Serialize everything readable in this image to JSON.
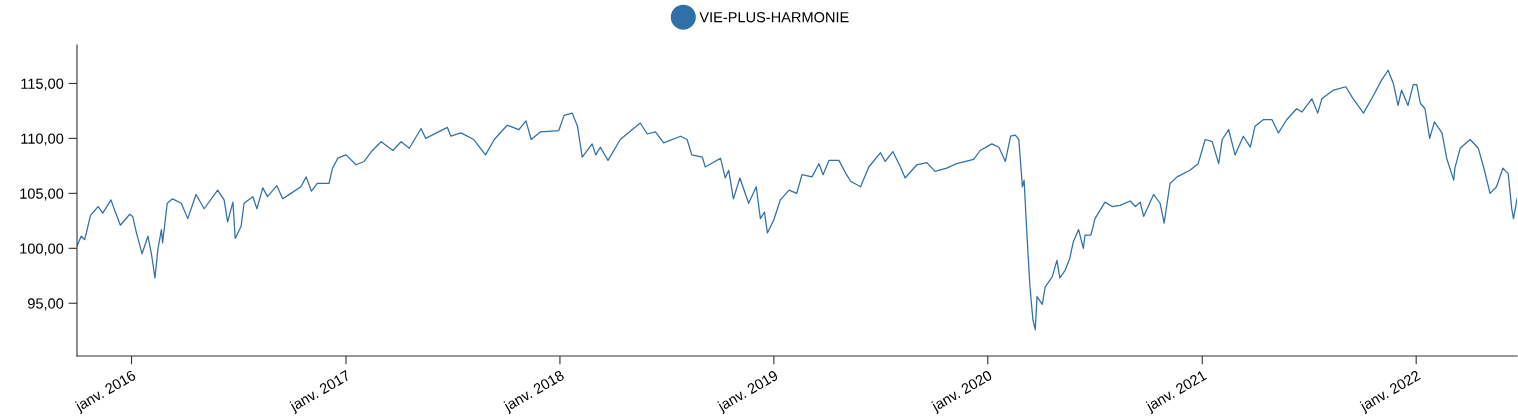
{
  "chart_data": {
    "type": "line",
    "legend": "top",
    "grid": false,
    "marker": "none",
    "line_style": "solid",
    "xlim": [
      "2015-09-30",
      "2022-06-22"
    ],
    "ylim": [
      90.2,
      118.5
    ],
    "xticks": [
      {
        "value": "2016-01-01",
        "label": "janv. 2016"
      },
      {
        "value": "2017-01-01",
        "label": "janv. 2017"
      },
      {
        "value": "2018-01-01",
        "label": "janv. 2018"
      },
      {
        "value": "2019-01-01",
        "label": "janv. 2019"
      },
      {
        "value": "2020-01-01",
        "label": "janv. 2020"
      },
      {
        "value": "2021-01-01",
        "label": "janv. 2021"
      },
      {
        "value": "2022-01-01",
        "label": "janv. 2022"
      }
    ],
    "yticks": [
      {
        "value": 95,
        "label": "95,00"
      },
      {
        "value": 100,
        "label": "100,00"
      },
      {
        "value": 105,
        "label": "105,00"
      },
      {
        "value": 110,
        "label": "110,00"
      },
      {
        "value": 115,
        "label": "115,00"
      }
    ],
    "x": [
      "2015-09-30",
      "2015-10-07",
      "2015-10-13",
      "2015-10-16",
      "2015-10-23",
      "2015-11-05",
      "2015-11-13",
      "2015-11-27",
      "2015-12-03",
      "2015-12-13",
      "2015-12-29",
      "2016-01-03",
      "2016-01-09",
      "2016-01-19",
      "2016-01-29",
      "2016-02-04",
      "2016-02-10",
      "2016-02-15",
      "2016-02-21",
      "2016-02-23",
      "2016-03-02",
      "2016-03-11",
      "2016-03-26",
      "2016-04-06",
      "2016-04-20",
      "2016-05-04",
      "2016-05-27",
      "2016-06-07",
      "2016-06-13",
      "2016-06-22",
      "2016-06-26",
      "2016-07-06",
      "2016-07-11",
      "2016-07-26",
      "2016-08-02",
      "2016-08-12",
      "2016-08-20",
      "2016-09-05",
      "2016-09-15",
      "2016-09-29",
      "2016-10-16",
      "2016-10-25",
      "2016-11-03",
      "2016-11-13",
      "2016-12-03",
      "2016-12-09",
      "2016-12-18",
      "2017-01-01",
      "2017-01-18",
      "2017-02-01",
      "2017-02-15",
      "2017-03-02",
      "2017-03-22",
      "2017-04-05",
      "2017-04-19",
      "2017-05-09",
      "2017-05-17",
      "2017-06-23",
      "2017-06-29",
      "2017-07-16",
      "2017-08-07",
      "2017-08-27",
      "2017-09-11",
      "2017-10-03",
      "2017-10-23",
      "2017-11-04",
      "2017-11-13",
      "2017-11-29",
      "2017-12-30",
      "2018-01-08",
      "2018-01-22",
      "2018-01-31",
      "2018-02-08",
      "2018-02-25",
      "2018-03-03",
      "2018-03-11",
      "2018-03-24",
      "2018-04-14",
      "2018-05-18",
      "2018-05-30",
      "2018-06-13",
      "2018-06-27",
      "2018-07-26",
      "2018-08-06",
      "2018-08-14",
      "2018-09-01",
      "2018-09-06",
      "2018-10-02",
      "2018-10-10",
      "2018-10-16",
      "2018-10-24",
      "2018-11-04",
      "2018-11-19",
      "2018-12-02",
      "2018-12-09",
      "2018-12-16",
      "2018-12-21",
      "2019-01-01",
      "2019-01-12",
      "2019-01-27",
      "2019-02-09",
      "2019-02-18",
      "2019-03-07",
      "2019-03-19",
      "2019-03-26",
      "2019-04-05",
      "2019-04-22",
      "2019-05-05",
      "2019-05-12",
      "2019-05-29",
      "2019-06-12",
      "2019-07-02",
      "2019-07-10",
      "2019-07-23",
      "2019-08-05",
      "2019-08-13",
      "2019-09-02",
      "2019-09-19",
      "2019-10-03",
      "2019-10-23",
      "2019-11-09",
      "2019-12-08",
      "2019-12-19",
      "2020-01-08",
      "2020-01-20",
      "2020-01-31",
      "2020-02-09",
      "2020-02-17",
      "2020-02-23",
      "2020-02-29",
      "2020-03-03",
      "2020-03-08",
      "2020-03-13",
      "2020-03-18",
      "2020-03-22",
      "2020-03-25",
      "2020-04-03",
      "2020-04-08",
      "2020-04-20",
      "2020-04-28",
      "2020-05-03",
      "2020-05-12",
      "2020-05-20",
      "2020-05-26",
      "2020-06-04",
      "2020-06-12",
      "2020-06-15",
      "2020-06-25",
      "2020-07-02",
      "2020-07-19",
      "2020-07-31",
      "2020-08-14",
      "2020-08-31",
      "2020-09-09",
      "2020-09-17",
      "2020-09-23",
      "2020-10-10",
      "2020-10-21",
      "2020-10-28",
      "2020-11-07",
      "2020-11-19",
      "2020-12-11",
      "2020-12-25",
      "2021-01-06",
      "2021-01-18",
      "2021-01-29",
      "2021-02-04",
      "2021-02-15",
      "2021-02-26",
      "2021-03-12",
      "2021-03-24",
      "2021-04-01",
      "2021-04-15",
      "2021-04-30",
      "2021-05-11",
      "2021-05-25",
      "2021-06-11",
      "2021-06-20",
      "2021-07-07",
      "2021-07-17",
      "2021-07-24",
      "2021-08-13",
      "2021-09-03",
      "2021-09-13",
      "2021-10-03",
      "2021-10-20",
      "2021-11-03",
      "2021-11-14",
      "2021-11-23",
      "2021-12-01",
      "2021-12-07",
      "2021-12-18",
      "2021-12-27",
      "2022-01-02",
      "2022-01-08",
      "2022-01-16",
      "2022-01-24",
      "2022-02-01",
      "2022-02-14",
      "2022-02-22",
      "2022-03-06",
      "2022-03-08",
      "2022-03-17",
      "2022-04-03",
      "2022-04-17",
      "2022-04-26",
      "2022-05-07",
      "2022-05-18",
      "2022-05-29",
      "2022-06-07",
      "2022-06-13",
      "2022-06-16",
      "2022-06-22"
    ],
    "series": [
      {
        "name": "VIE-PLUS-HARMONIE",
        "color": "#2f70a8",
        "values": [
          100.2,
          101.1,
          100.8,
          101.4,
          103.0,
          103.8,
          103.2,
          104.4,
          103.5,
          102.1,
          103.1,
          102.9,
          101.5,
          99.5,
          101.1,
          99.5,
          97.3,
          99.9,
          101.7,
          100.5,
          104.1,
          104.5,
          104.1,
          102.7,
          104.9,
          103.6,
          105.3,
          104.4,
          102.4,
          104.2,
          100.9,
          102.0,
          104.1,
          104.7,
          103.6,
          105.5,
          104.7,
          105.7,
          104.5,
          105.0,
          105.6,
          106.5,
          105.2,
          105.9,
          105.9,
          107.3,
          108.2,
          108.5,
          107.6,
          107.9,
          108.9,
          109.7,
          108.9,
          109.7,
          109.1,
          110.9,
          110.0,
          111.0,
          110.2,
          110.5,
          109.9,
          108.5,
          109.9,
          111.2,
          110.8,
          111.6,
          109.9,
          110.6,
          110.7,
          112.1,
          112.3,
          111.1,
          108.3,
          109.5,
          108.5,
          109.2,
          108.0,
          109.9,
          111.4,
          110.4,
          110.6,
          109.6,
          110.2,
          109.9,
          108.5,
          108.3,
          107.4,
          108.2,
          106.4,
          107.1,
          104.5,
          106.4,
          104.1,
          105.6,
          102.7,
          103.3,
          101.4,
          102.6,
          104.4,
          105.3,
          105.0,
          106.7,
          106.5,
          107.7,
          106.7,
          108.0,
          108.0,
          106.7,
          106.1,
          105.6,
          107.4,
          108.7,
          107.9,
          108.8,
          107.4,
          106.4,
          107.6,
          107.8,
          107.0,
          107.3,
          107.7,
          108.1,
          108.9,
          109.5,
          109.2,
          107.9,
          110.2,
          110.3,
          109.9,
          105.6,
          106.2,
          101.1,
          96.5,
          93.5,
          92.6,
          95.6,
          94.9,
          96.5,
          97.4,
          98.9,
          97.3,
          98.0,
          99.1,
          100.6,
          101.7,
          100.0,
          101.2,
          101.2,
          102.7,
          104.2,
          103.8,
          103.9,
          104.3,
          103.8,
          104.2,
          102.9,
          104.9,
          104.1,
          102.3,
          105.9,
          106.5,
          107.1,
          107.7,
          109.9,
          109.7,
          107.7,
          109.9,
          110.8,
          108.5,
          110.2,
          109.2,
          111.1,
          111.7,
          111.7,
          110.5,
          111.7,
          112.7,
          112.4,
          113.6,
          112.3,
          113.6,
          114.4,
          114.7,
          113.8,
          112.3,
          113.9,
          115.3,
          116.2,
          115.0,
          113.0,
          114.4,
          113.0,
          114.9,
          114.9,
          113.2,
          112.7,
          110.0,
          111.5,
          110.5,
          108.2,
          106.2,
          107.3,
          109.1,
          109.9,
          109.1,
          107.4,
          105.0,
          105.6,
          107.3,
          106.8,
          103.6,
          102.7,
          104.5
        ]
      }
    ]
  }
}
